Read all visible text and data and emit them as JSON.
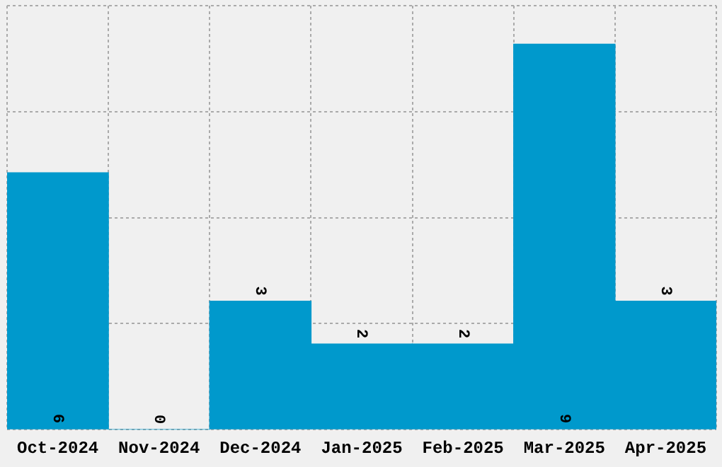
{
  "chart_data": {
    "type": "bar",
    "categories": [
      "Oct-2024",
      "Nov-2024",
      "Dec-2024",
      "Jan-2025",
      "Feb-2025",
      "Mar-2025",
      "Apr-2025"
    ],
    "values": [
      6,
      0,
      3,
      2,
      2,
      9,
      3
    ],
    "color": "#0099cc",
    "data_labels": true,
    "grid": true,
    "ylim": [
      0,
      9.9
    ],
    "yticks": [
      {
        "value": 0,
        "label": null
      },
      {
        "value": 2.475,
        "label": null
      },
      {
        "value": 4.95,
        "label": null
      },
      {
        "value": 7.425,
        "label": null
      },
      {
        "value": 9.9,
        "label": null
      }
    ],
    "tick_labels": "x"
  }
}
